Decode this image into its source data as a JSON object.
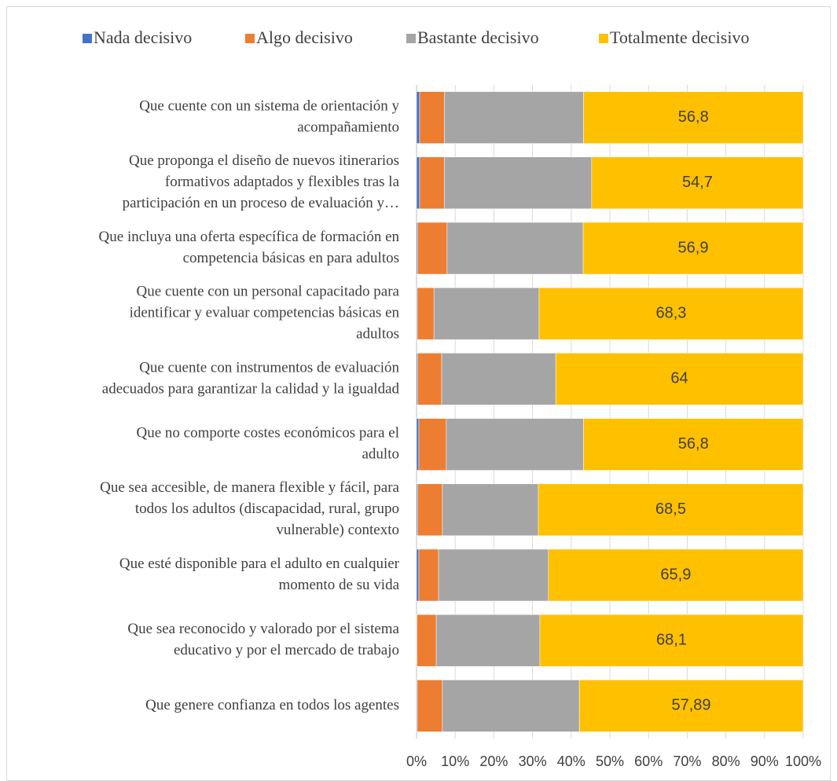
{
  "chart_data": {
    "type": "stacked-bar-horizontal",
    "categories": [
      [
        "Que cuente con un sistema de orientación y",
        "acompañamiento"
      ],
      [
        "Que proponga el diseño de nuevos itinerarios",
        "formativos adaptados y flexibles tras la",
        "participación en un proceso de evaluación y…"
      ],
      [
        "Que incluya una oferta específica de formación en",
        "competencia básicas en para adultos"
      ],
      [
        "Que cuente con un personal capacitado para",
        "identificar y evaluar competencias básicas en",
        "adultos"
      ],
      [
        "Que cuente con instrumentos de evaluación",
        "adecuados para garantizar la calidad y la igualdad"
      ],
      [
        "Que no comporte costes económicos para el",
        "adulto"
      ],
      [
        "Que sea accesible, de manera flexible y fácil, para",
        "todos los adultos (discapacidad, rural, grupo",
        "vulnerable) contexto"
      ],
      [
        "Que esté disponible para el adulto en cualquier",
        "momento de su vida"
      ],
      [
        "Que sea reconocido y valorado por el sistema",
        "educativo y por el mercado de trabajo"
      ],
      [
        "Que genere confianza en todos los agentes"
      ]
    ],
    "series": [
      {
        "name": "Nada decisivo",
        "color": "#4472c4",
        "values": [
          0.8,
          0.8,
          0.3,
          0.2,
          0.3,
          0.6,
          0.3,
          0.6,
          0.1,
          0.2
        ]
      },
      {
        "name": "Algo decisivo",
        "color": "#ed7d31",
        "values": [
          6.4,
          6.4,
          7.6,
          4.3,
          6.2,
          7.1,
          6.4,
          5.1,
          5.0,
          6.5
        ]
      },
      {
        "name": "Bastante decisivo",
        "color": "#a5a5a5",
        "values": [
          36.0,
          38.1,
          35.2,
          27.2,
          29.5,
          35.5,
          24.8,
          28.4,
          26.8,
          35.4
        ]
      },
      {
        "name": "Totalmente decisivo",
        "color": "#ffc000",
        "values": [
          56.8,
          54.7,
          56.9,
          68.3,
          64,
          56.8,
          68.5,
          65.9,
          68.1,
          57.89
        ],
        "value_labels": [
          "56,8",
          "54,7",
          "56,9",
          "68,3",
          "64",
          "56,8",
          "68,5",
          "65,9",
          "68,1",
          "57,89"
        ]
      }
    ],
    "xlim": [
      0,
      100
    ],
    "xticks": [
      {
        "value": 0,
        "label": "0%"
      },
      {
        "value": 10,
        "label": "10%"
      },
      {
        "value": 20,
        "label": "20%"
      },
      {
        "value": 30,
        "label": "30%"
      },
      {
        "value": 40,
        "label": "40%"
      },
      {
        "value": 50,
        "label": "50%"
      },
      {
        "value": 60,
        "label": "60%"
      },
      {
        "value": 70,
        "label": "70%"
      },
      {
        "value": 80,
        "label": "80%"
      },
      {
        "value": 90,
        "label": "90%"
      },
      {
        "value": 100,
        "label": "100%"
      }
    ],
    "grid": true,
    "legend": "top"
  }
}
